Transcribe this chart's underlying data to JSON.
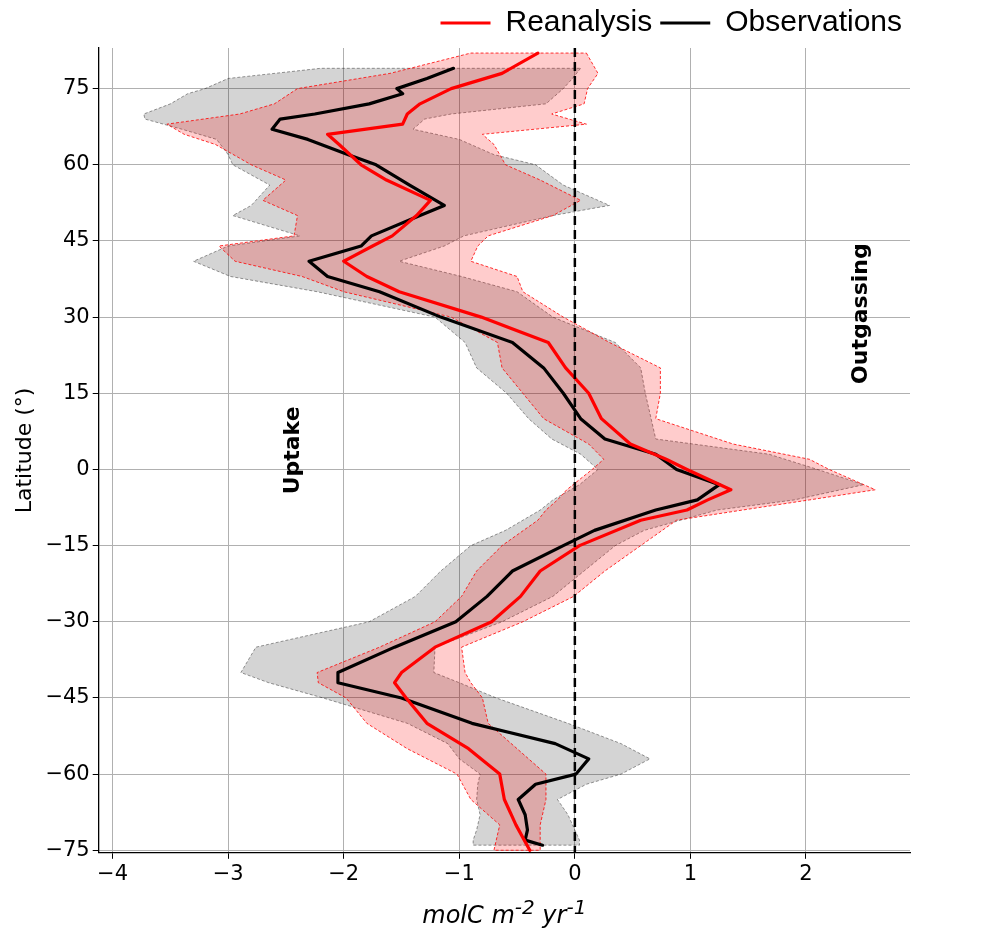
{
  "chart_data": {
    "type": "line",
    "orientation": "horizontal",
    "xlabel": "molC m$^{-2}$ yr$^{-1}$",
    "ylabel": "Latitude (°)",
    "xlim": [
      -4.12,
      2.9
    ],
    "xticks": [
      {
        "value": -4,
        "label": "−4"
      },
      {
        "value": -3,
        "label": "−3"
      },
      {
        "value": -2,
        "label": "−2"
      },
      {
        "value": -1,
        "label": "−1"
      },
      0,
      1,
      2
    ],
    "ylim": [
      -75.5,
      83
    ],
    "yticks": [
      {
        "value": -75,
        "label": "−75"
      },
      {
        "value": -60,
        "label": "−60"
      },
      {
        "value": -45,
        "label": "−45"
      },
      {
        "value": -30,
        "label": "−30"
      },
      {
        "value": -15,
        "label": "−15"
      },
      0,
      15,
      30,
      45,
      60,
      75
    ],
    "grid": true,
    "legend": "top right",
    "ref_lines": [
      {
        "axis": "x",
        "value": 0,
        "color": "#000000",
        "line_style": "dashed"
      }
    ],
    "annotations": [
      "Uptake",
      "Outgassing"
    ],
    "series": [
      {
        "name": "Reanalysis",
        "color": "#ff0000",
        "x": [
          82,
          78,
          75,
          72,
          70,
          68,
          66,
          64,
          60,
          57,
          53,
          50,
          46,
          44,
          41,
          38,
          35,
          30,
          25,
          20,
          15,
          10,
          5,
          2,
          0,
          -4,
          -6,
          -8,
          -10,
          -15,
          -20,
          -25,
          -30,
          -35,
          -40,
          -42,
          -45,
          -50,
          -55,
          -60,
          -65,
          -70,
          -75
        ],
        "values": [
          -0.32,
          -0.63,
          -1.07,
          -1.34,
          -1.45,
          -1.49,
          -2.14,
          -2.04,
          -1.85,
          -1.63,
          -1.25,
          -1.37,
          -1.58,
          -1.75,
          -2.0,
          -1.8,
          -1.52,
          -0.81,
          -0.23,
          -0.08,
          0.12,
          0.23,
          0.48,
          0.79,
          0.97,
          1.35,
          1.15,
          0.97,
          0.57,
          0.04,
          -0.3,
          -0.47,
          -0.72,
          -1.21,
          -1.5,
          -1.56,
          -1.46,
          -1.28,
          -0.92,
          -0.65,
          -0.61,
          -0.51,
          -0.39
        ],
        "upper": [
          0.1,
          0.2,
          0.11,
          0.08,
          -0.2,
          0.1,
          -0.8,
          -0.7,
          -0.6,
          -0.3,
          0.05,
          -0.19,
          -0.75,
          -0.84,
          -0.9,
          -0.5,
          -0.45,
          -0.1,
          0.3,
          0.74,
          0.74,
          0.7,
          1.37,
          2.03,
          2.2,
          2.6,
          2.03,
          1.45,
          0.88,
          0.57,
          0.26,
          -0.01,
          -0.45,
          -0.98,
          -0.95,
          -0.9,
          -0.8,
          -0.75,
          -0.5,
          -0.25,
          -0.25,
          -0.3,
          -0.3
        ],
        "lower": [
          -0.9,
          -1.6,
          -2.4,
          -2.6,
          -2.9,
          -3.53,
          -3.38,
          -3.11,
          -2.8,
          -2.5,
          -2.7,
          -2.4,
          -2.43,
          -3.08,
          -2.94,
          -2.36,
          -2.0,
          -1.07,
          -0.67,
          -0.63,
          -0.45,
          -0.27,
          0.12,
          0.25,
          0.15,
          -0.07,
          -0.15,
          -0.25,
          -0.32,
          -0.63,
          -0.85,
          -0.98,
          -1.21,
          -1.69,
          -2.23,
          -2.22,
          -1.98,
          -1.8,
          -1.45,
          -1.02,
          -0.9,
          -0.65,
          -0.7
        ]
      },
      {
        "name": "Observations",
        "color": "#000000",
        "x": [
          79,
          77,
          75,
          74,
          72,
          70,
          69,
          67,
          65,
          62,
          60,
          56,
          52,
          50,
          46,
          44,
          41,
          38,
          35,
          30,
          25,
          20,
          15,
          10,
          6,
          3,
          0,
          -3,
          -6,
          -8,
          -12,
          -15,
          -20,
          -25,
          -30,
          -35,
          -40,
          -42,
          -45,
          -50,
          -54,
          -57,
          -60,
          -62,
          -65,
          -68,
          -71,
          -73,
          -74
        ],
        "values": [
          -1.05,
          -1.28,
          -1.54,
          -1.49,
          -1.78,
          -2.25,
          -2.55,
          -2.62,
          -2.31,
          -1.96,
          -1.72,
          -1.43,
          -1.13,
          -1.34,
          -1.76,
          -1.85,
          -2.3,
          -2.14,
          -1.69,
          -1.16,
          -0.54,
          -0.27,
          -0.1,
          0.05,
          0.26,
          0.7,
          0.88,
          1.25,
          1.06,
          0.7,
          0.17,
          -0.1,
          -0.54,
          -0.76,
          -1.03,
          -1.56,
          -2.05,
          -2.05,
          -1.5,
          -0.89,
          -0.17,
          0.12,
          0.01,
          -0.34,
          -0.49,
          -0.43,
          -0.41,
          -0.43,
          -0.28
        ],
        "upper": [
          0.05,
          -0.02,
          -0.1,
          -0.15,
          -0.25,
          -1.07,
          -1.3,
          -1.4,
          -1.0,
          -0.7,
          -0.34,
          -0.1,
          0.3,
          -0.19,
          -0.96,
          -1.13,
          -1.52,
          -0.98,
          -0.5,
          -0.19,
          0.35,
          0.57,
          0.61,
          0.66,
          0.7,
          1.68,
          2.1,
          2.5,
          1.9,
          1.23,
          0.6,
          0.35,
          0.08,
          -0.19,
          -0.63,
          -1.21,
          -1.22,
          -1.0,
          -0.68,
          -0.06,
          0.4,
          0.65,
          0.4,
          0.1,
          -0.15,
          -0.06,
          0.0,
          0.04,
          0.04
        ],
        "lower": [
          -2.2,
          -3.0,
          -3.2,
          -3.35,
          -3.5,
          -3.73,
          -3.72,
          -3.4,
          -3.1,
          -3.0,
          -2.96,
          -2.64,
          -2.8,
          -2.96,
          -2.38,
          -3.0,
          -3.3,
          -2.98,
          -2.23,
          -1.21,
          -0.95,
          -0.85,
          -0.59,
          -0.4,
          -0.2,
          0.05,
          0.2,
          0.04,
          -0.19,
          -0.3,
          -0.6,
          -0.9,
          -1.16,
          -1.38,
          -1.78,
          -2.76,
          -2.89,
          -2.65,
          -2.18,
          -1.45,
          -1.1,
          -1.0,
          -0.82,
          -0.84,
          -0.85,
          -0.82,
          -0.85,
          -0.88,
          -0.88
        ]
      }
    ]
  }
}
